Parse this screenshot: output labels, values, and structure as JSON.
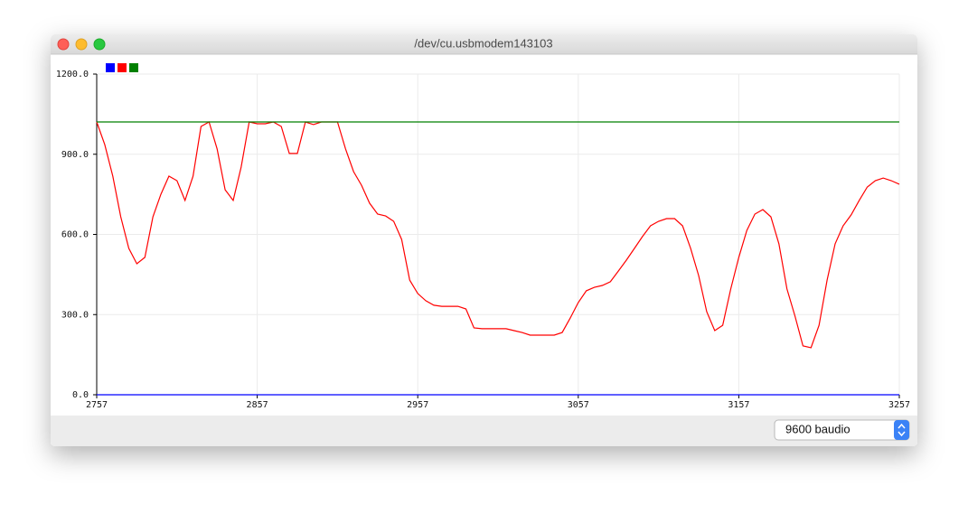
{
  "window": {
    "title": "/dev/cu.usbmodem143103"
  },
  "controls": {
    "baud": "9600 baudio"
  },
  "chart_data": {
    "type": "line",
    "x": [
      2757,
      2762,
      2767,
      2772,
      2777,
      2782,
      2787,
      2792,
      2797,
      2802,
      2807,
      2812,
      2817,
      2822,
      2827,
      2832,
      2837,
      2842,
      2847,
      2852,
      2857,
      2862,
      2867,
      2872,
      2877,
      2882,
      2887,
      2892,
      2897,
      2902,
      2907,
      2912,
      2917,
      2922,
      2927,
      2932,
      2937,
      2942,
      2947,
      2952,
      2957,
      2962,
      2967,
      2972,
      2977,
      2982,
      2987,
      2992,
      2997,
      3002,
      3007,
      3012,
      3017,
      3022,
      3027,
      3032,
      3037,
      3042,
      3047,
      3052,
      3057,
      3062,
      3067,
      3072,
      3077,
      3082,
      3087,
      3092,
      3097,
      3102,
      3107,
      3112,
      3117,
      3122,
      3127,
      3132,
      3137,
      3142,
      3147,
      3152,
      3157,
      3162,
      3167,
      3172,
      3177,
      3182,
      3187,
      3192,
      3197,
      3202,
      3207,
      3212,
      3217,
      3222,
      3227,
      3232,
      3237,
      3242,
      3247,
      3252,
      3257
    ],
    "series": [
      {
        "color": "#0000ff",
        "values": [
          0,
          0,
          0,
          0,
          0,
          0,
          0,
          0,
          0,
          0,
          0,
          0,
          0,
          0,
          0,
          0,
          0,
          0,
          0,
          0,
          0,
          0,
          0,
          0,
          0,
          0,
          0,
          0,
          0,
          0,
          0,
          0,
          0,
          0,
          0,
          0,
          0,
          0,
          0,
          0,
          0,
          0,
          0,
          0,
          0,
          0,
          0,
          0,
          0,
          0,
          0,
          0,
          0,
          0,
          0,
          0,
          0,
          0,
          0,
          0,
          0,
          0,
          0,
          0,
          0,
          0,
          0,
          0,
          0,
          0,
          0,
          0,
          0,
          0,
          0,
          0,
          0,
          0,
          0,
          0,
          0,
          0,
          0,
          0,
          0,
          0,
          0,
          0,
          0,
          0,
          0,
          0,
          0,
          0,
          0,
          0,
          0,
          0,
          0,
          0,
          0
        ]
      },
      {
        "color": "#ff0000",
        "values": [
          1021,
          936,
          818,
          666,
          548,
          490,
          514,
          666,
          750,
          818,
          801,
          727,
          818,
          1004,
          1021,
          920,
          767,
          727,
          852,
          1021,
          1014,
          1014,
          1021,
          1004,
          903,
          903,
          1021,
          1011,
          1021,
          1021,
          1021,
          920,
          835,
          784,
          717,
          676,
          669,
          649,
          581,
          429,
          379,
          352,
          335,
          331,
          331,
          331,
          321,
          250,
          247,
          247,
          247,
          247,
          240,
          233,
          223,
          223,
          223,
          223,
          233,
          287,
          345,
          389,
          402,
          409,
          423,
          463,
          504,
          548,
          592,
          632,
          649,
          659,
          659,
          632,
          548,
          446,
          311,
          240,
          260,
          396,
          514,
          615,
          676,
          693,
          666,
          565,
          396,
          294,
          183,
          176,
          260,
          429,
          565,
          632,
          673,
          727,
          777,
          801,
          811,
          801,
          788
        ]
      },
      {
        "color": "#008000",
        "values": [
          1021,
          1021,
          1021,
          1021,
          1021,
          1021,
          1021,
          1021,
          1021,
          1021,
          1021,
          1021,
          1021,
          1021,
          1021,
          1021,
          1021,
          1021,
          1021,
          1021,
          1021,
          1021,
          1021,
          1021,
          1021,
          1021,
          1021,
          1021,
          1021,
          1021,
          1021,
          1021,
          1021,
          1021,
          1021,
          1021,
          1021,
          1021,
          1021,
          1021,
          1021,
          1021,
          1021,
          1021,
          1021,
          1021,
          1021,
          1021,
          1021,
          1021,
          1021,
          1021,
          1021,
          1021,
          1021,
          1021,
          1021,
          1021,
          1021,
          1021,
          1021,
          1021,
          1021,
          1021,
          1021,
          1021,
          1021,
          1021,
          1021,
          1021,
          1021,
          1021,
          1021,
          1021,
          1021,
          1021,
          1021,
          1021,
          1021,
          1021,
          1021,
          1021,
          1021,
          1021,
          1021,
          1021,
          1021,
          1021,
          1021,
          1021,
          1021,
          1021,
          1021,
          1021,
          1021,
          1021,
          1021,
          1021,
          1021,
          1021,
          1021
        ]
      }
    ],
    "xlim": [
      2757,
      3257
    ],
    "xticks": [
      2757,
      2857,
      2957,
      3057,
      3157,
      3257
    ],
    "ylim": [
      0,
      1200
    ],
    "yticks": [
      {
        "value": 0,
        "label": "0.0"
      },
      {
        "value": 300,
        "label": "300.0"
      },
      {
        "value": 600,
        "label": "600.0"
      },
      {
        "value": 900,
        "label": "900.0"
      },
      {
        "value": 1200,
        "label": "1200.0"
      }
    ],
    "grid": true
  }
}
